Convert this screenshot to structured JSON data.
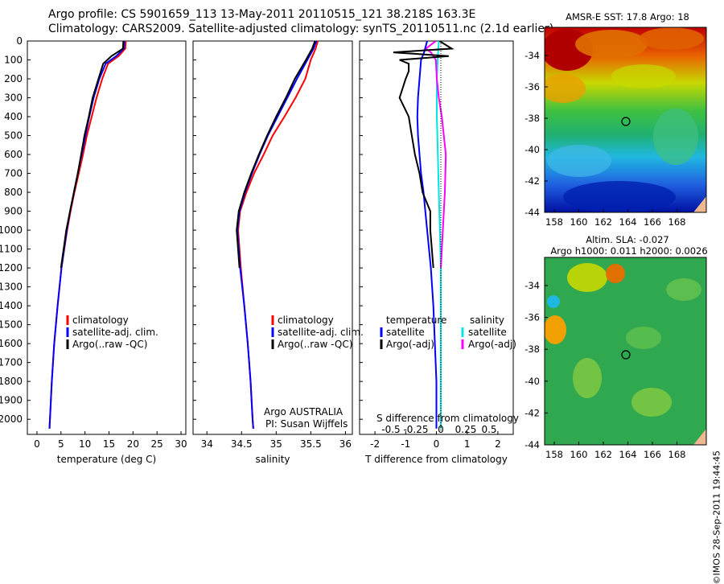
{
  "header": {
    "line1": "Argo profile: CS 5901659_113 13-May-2011 20110515_121 38.218S 163.3E",
    "line2": "Climatology: CARS2009. Satellite-adjusted climatology: synTS_20110511.nc (2.1d earlier)"
  },
  "map1": {
    "title": "AMSR-E SST: 17.8 Argo: 18"
  },
  "map2": {
    "title1": "Altim. SLA: -0.027",
    "title2": "Argo h1000: 0.011 h2000: 0.0026"
  },
  "maps_axes": {
    "lon_ticks": [
      "158",
      "160",
      "162",
      "164",
      "166",
      "168"
    ],
    "lat_ticks": [
      "-34",
      "-36",
      "-38",
      "-40",
      "-42",
      "-44"
    ]
  },
  "stamp": "©IMOS 28-Sep-2011 19:44:45",
  "colors": {
    "climatology": "#ff0000",
    "satellite": "#0000ff",
    "argo": "#000000",
    "sal_satellite": "#00e5e5",
    "sal_argo": "#ff00ff"
  },
  "panel1_legend": [
    "climatology",
    "satellite-adj. clim.",
    "Argo(..raw -QC)"
  ],
  "panel2_legend": [
    "climatology",
    "satellite-adj. clim.",
    "Argo(..raw -QC)"
  ],
  "panel2_note": [
    "Argo AUSTRALIA",
    "PI: Susan Wijffels"
  ],
  "panel3_legend": {
    "temp_header": "temperature",
    "sal_header": "salinity",
    "temp_items": [
      "satellite",
      "Argo(-adj)"
    ],
    "sal_items": [
      "satellite",
      "Argo(-adj)"
    ]
  },
  "panel3_top_label": "S difference from climatology",
  "panel3_top_ticks": [
    "-0.5",
    "-0.25",
    "0",
    "0.25",
    "0.5"
  ],
  "chart_data": [
    {
      "type": "line",
      "xlabel": "temperature (deg C)",
      "ylabel": "",
      "xlim": [
        -2,
        31
      ],
      "ylim": [
        2080,
        0
      ],
      "xticks": [
        "0",
        "5",
        "10",
        "15",
        "20",
        "25",
        "30"
      ],
      "yticks": [
        "0",
        "100",
        "200",
        "300",
        "400",
        "500",
        "600",
        "700",
        "800",
        "900",
        "1000",
        "1100",
        "1200",
        "1300",
        "1400",
        "1500",
        "1600",
        "1700",
        "1800",
        "1900",
        "2000"
      ],
      "depth": [
        0,
        40,
        80,
        120,
        200,
        300,
        400,
        500,
        600,
        700,
        800,
        900,
        1000,
        1200,
        1400,
        1600,
        1800,
        2000,
        2050
      ],
      "series": [
        {
          "name": "climatology",
          "values": [
            18.5,
            18.4,
            17,
            14.8,
            13.6,
            12.4,
            11.4,
            10.4,
            9.6,
            8.7,
            7.8,
            7,
            6.3,
            5.1,
            4.3,
            3.6,
            3.1,
            2.7,
            2.6
          ]
        },
        {
          "name": "satellite-adj. clim.",
          "values": [
            18.2,
            18.1,
            16.5,
            14.3,
            13,
            11.8,
            10.9,
            10.1,
            9.3,
            8.5,
            7.7,
            6.9,
            6.2,
            5.1,
            4.3,
            3.6,
            3.1,
            2.7,
            2.6
          ]
        },
        {
          "name": "Argo(..raw -QC)",
          "values": [
            18,
            17.9,
            15.5,
            13.8,
            12.8,
            11.6,
            10.8,
            9.9,
            9.2,
            8.5,
            7.7,
            6.9,
            6.1,
            5
          ]
        }
      ]
    },
    {
      "type": "line",
      "xlabel": "salinity",
      "xlim": [
        33.8,
        36.1
      ],
      "ylim": [
        2080,
        0
      ],
      "xticks": [
        "34",
        "34.5",
        "35",
        "35.5",
        "36"
      ],
      "depth": [
        0,
        40,
        100,
        200,
        300,
        400,
        500,
        600,
        700,
        800,
        900,
        1000,
        1200,
        1400,
        1600,
        1800,
        2000,
        2050
      ],
      "series": [
        {
          "name": "climatology",
          "values": [
            35.6,
            35.57,
            35.5,
            35.42,
            35.28,
            35.12,
            34.95,
            34.82,
            34.68,
            34.57,
            34.48,
            34.45,
            34.49,
            34.54,
            34.59,
            34.63,
            34.66,
            34.67
          ]
        },
        {
          "name": "satellite-adj. clim.",
          "values": [
            35.58,
            35.54,
            35.45,
            35.3,
            35.16,
            35.02,
            34.88,
            34.76,
            34.65,
            34.55,
            34.47,
            34.44,
            34.48,
            34.54,
            34.59,
            34.63,
            34.66,
            34.67
          ]
        },
        {
          "name": "Argo(..raw -QC)",
          "values": [
            35.56,
            35.52,
            35.43,
            35.27,
            35.14,
            35.0,
            34.87,
            34.75,
            34.64,
            34.54,
            34.46,
            34.43,
            34.47
          ]
        }
      ]
    },
    {
      "type": "line",
      "xlabel": "T difference from climatology",
      "xlim": [
        -2.5,
        2.5
      ],
      "ylim": [
        2080,
        0
      ],
      "xticks": [
        "-2",
        "-1",
        "0",
        "1",
        "2"
      ],
      "temperature": [
        {
          "name": "satellite",
          "depth": [
            0,
            60,
            100,
            200,
            300,
            400,
            500,
            600,
            700,
            800,
            900,
            1000,
            1100,
            1200,
            1400,
            1600,
            1800,
            2000,
            2050
          ],
          "values": [
            -0.3,
            -0.4,
            -0.5,
            -0.55,
            -0.6,
            -0.62,
            -0.6,
            -0.55,
            -0.5,
            -0.42,
            -0.36,
            -0.3,
            -0.24,
            -0.18,
            -0.1,
            -0.05,
            0,
            0,
            0
          ]
        },
        {
          "name": "Argo(-adj)",
          "depth": [
            0,
            40,
            60,
            80,
            100,
            120,
            160,
            200,
            300,
            400,
            500,
            600,
            700,
            800,
            900,
            1000,
            1100,
            1200
          ],
          "values": [
            0.1,
            0.5,
            -1.4,
            0.4,
            -1.2,
            -0.9,
            -0.9,
            -1.0,
            -1.2,
            -0.9,
            -0.8,
            -0.7,
            -0.55,
            -0.45,
            -0.2,
            -0.2,
            -0.15,
            -0.1
          ]
        }
      ],
      "salinity": [
        {
          "name": "satellite",
          "depth": [
            0,
            80,
            200,
            400,
            600,
            800,
            1000,
            1200,
            1400,
            1600,
            1800,
            2000,
            2050
          ],
          "values": [
            -0.02,
            -0.03,
            -0.04,
            -0.04,
            -0.03,
            -0.02,
            -0.01,
            0,
            0,
            0,
            0,
            0,
            0
          ]
        },
        {
          "name": "Argo(-adj)",
          "depth": [
            0,
            40,
            60,
            100,
            200,
            300,
            400,
            500,
            600,
            800,
            1000,
            1200
          ],
          "values": [
            -0.05,
            -0.15,
            -0.1,
            -0.05,
            -0.04,
            -0.02,
            0.01,
            0.03,
            0.05,
            0.04,
            0.02,
            0.0
          ]
        }
      ]
    }
  ]
}
